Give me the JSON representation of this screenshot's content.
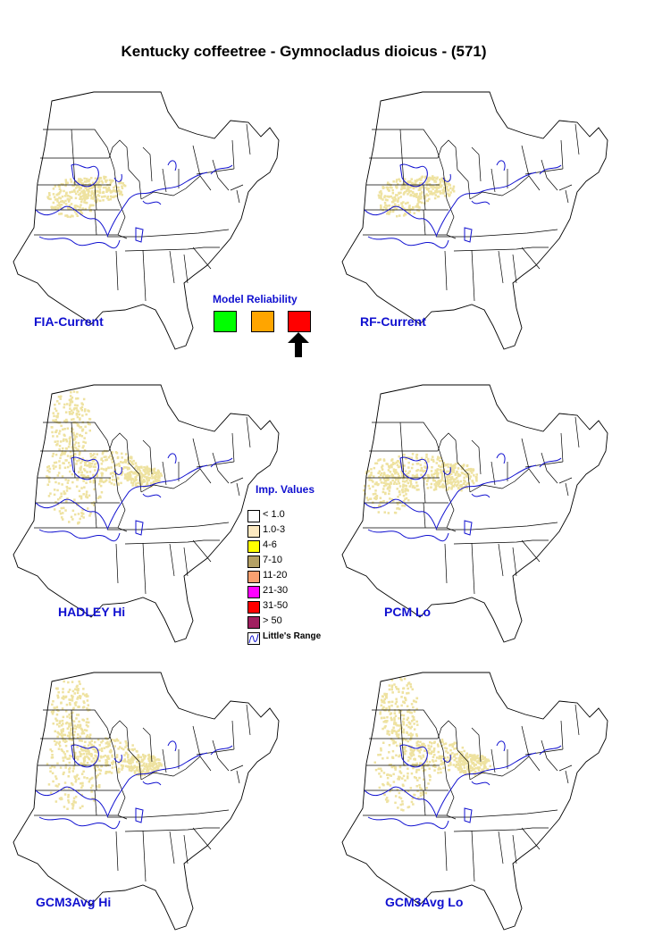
{
  "title": "Kentucky coffeetree - Gymnocladus dioicus - (571)",
  "colors": {
    "state_lines": "#000000",
    "range_lines": "#1010d0",
    "presence": "#eee2a0",
    "label_text": "#1010d0"
  },
  "maps": [
    {
      "label": "FIA-Current",
      "spread": "current"
    },
    {
      "label": "RF-Current",
      "spread": "current"
    },
    {
      "label": "HADLEY Hi",
      "spread": "high"
    },
    {
      "label": "PCM Lo",
      "spread": "medium"
    },
    {
      "label": "GCM3Avg Hi",
      "spread": "high"
    },
    {
      "label": "GCM3Avg Lo",
      "spread": "high"
    }
  ],
  "model_reliability": {
    "title": "Model Reliability",
    "levels": [
      {
        "name": "high",
        "color": "#00ff00"
      },
      {
        "name": "medium",
        "color": "#ffa500"
      },
      {
        "name": "low",
        "color": "#ff0000"
      }
    ],
    "selected_level": "low",
    "arrow_icon": "up-arrow-icon"
  },
  "legend": {
    "title": "Imp. Values",
    "items": [
      {
        "label": "< 1.0",
        "color": "#ffffff"
      },
      {
        "label": "1.0-3",
        "color": "#fbe8c0"
      },
      {
        "label": "4-6",
        "color": "#ffff00"
      },
      {
        "label": "7-10",
        "color": "#b4a064"
      },
      {
        "label": "11-20",
        "color": "#f8a070"
      },
      {
        "label": "21-30",
        "color": "#ff00ff"
      },
      {
        "label": "31-50",
        "color": "#ff0000"
      },
      {
        "label": "> 50",
        "color": "#a02060"
      }
    ],
    "range_label": "Little's Range",
    "range_icon": "little-range-icon"
  }
}
